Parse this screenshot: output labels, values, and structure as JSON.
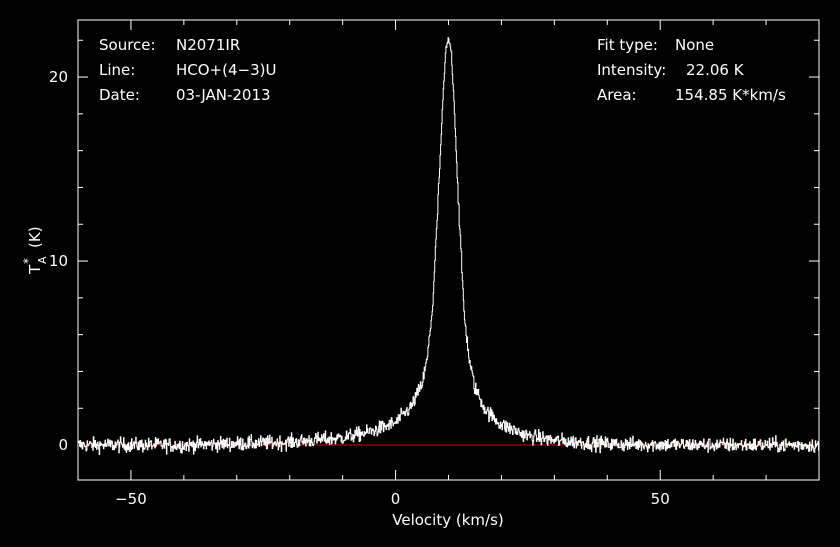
{
  "header": {
    "source_label": "Source:",
    "source_value": "N2071IR",
    "line_label": "Line:",
    "line_value": "HCO+(4−3)U",
    "date_label": "Date:",
    "date_value": "03-JAN-2013",
    "fit_label": "Fit type:",
    "fit_value": "None",
    "intensity_label": "Intensity:",
    "intensity_value": "22.06 K",
    "area_label": "Area:",
    "area_value": "154.85 K*km/s"
  },
  "chart_data": {
    "type": "line",
    "title": "",
    "xlabel": "Velocity (km/s)",
    "ylabel_main": "T",
    "ylabel_sub": "A",
    "ylabel_sup": "*",
    "ylabel_unit": "(K)",
    "xlim": [
      -60,
      80
    ],
    "ylim": [
      -1.9,
      23.1
    ],
    "xticks": [
      -50,
      0,
      50
    ],
    "xtick_labels": [
      "−50",
      "0",
      "50"
    ],
    "yticks": [
      0,
      10,
      20
    ],
    "ytick_labels": [
      "0",
      "10",
      "20"
    ],
    "baseline": 0,
    "colors": {
      "spectrum": "#ffffff",
      "baseline": "#d40000",
      "axes": "#ffffff",
      "background": "#000000"
    },
    "series": [
      {
        "x": [
          -60,
          -40,
          -20,
          -10,
          -5,
          0,
          3,
          5,
          6,
          7,
          8,
          9,
          9.5,
          10,
          10.5,
          11,
          12,
          13,
          14,
          15,
          17,
          20,
          25,
          30,
          40,
          60,
          80
        ],
        "y": [
          0,
          0,
          0.15,
          0.4,
          0.7,
          1.2,
          2.1,
          3.3,
          4.7,
          7.5,
          13.0,
          19.0,
          21.5,
          22.06,
          21.5,
          19.0,
          12.5,
          7.0,
          4.5,
          3.1,
          1.9,
          1.1,
          0.5,
          0.25,
          0.05,
          0,
          0
        ]
      }
    ]
  }
}
